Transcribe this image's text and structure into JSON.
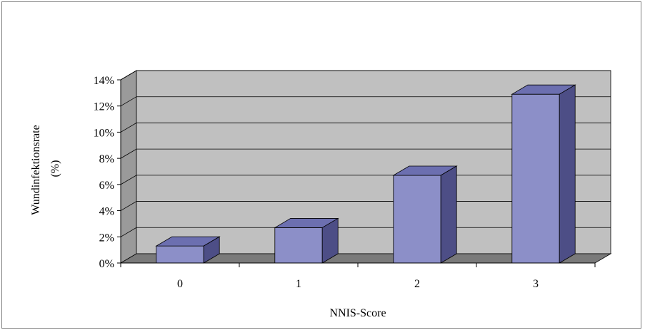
{
  "chart_data": {
    "type": "bar",
    "three_d": true,
    "categories": [
      "0",
      "1",
      "2",
      "3"
    ],
    "values": [
      1.3,
      2.7,
      6.7,
      12.9
    ],
    "ylim": [
      0,
      14
    ],
    "yticks": [
      "0%",
      "2%",
      "4%",
      "6%",
      "8%",
      "10%",
      "12%",
      "14%"
    ],
    "xlabel": "NNIS-Score",
    "ylabel_lines": [
      "Wundinfektionsrate",
      "(%)"
    ],
    "grid": true,
    "legend": "none",
    "colors": {
      "bar_front": "#8c8fc8",
      "bar_top": "#6c6fb0",
      "bar_side": "#4d4e86",
      "back_wall": "#c0c0c0",
      "side_wall": "#9a9a9a",
      "floor": "#7a7a7a"
    }
  }
}
